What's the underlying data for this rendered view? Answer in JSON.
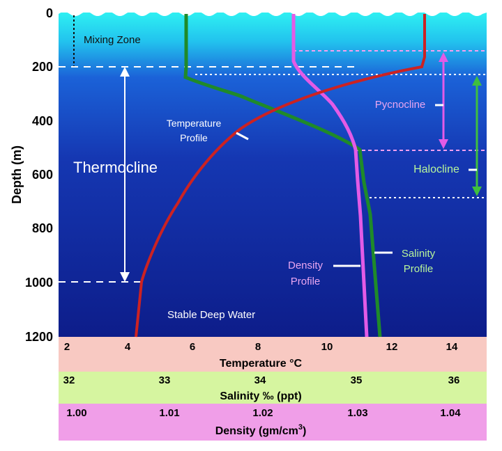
{
  "ylabel": "Depth (m)",
  "depth_ticks": [
    "0",
    "200",
    "400",
    "600",
    "800",
    "1000",
    "1200"
  ],
  "temperature": {
    "title": "Temperature °C",
    "ticks": [
      "2",
      "4",
      "6",
      "8",
      "10",
      "12",
      "14"
    ]
  },
  "salinity": {
    "title": "Salinity ‰ (ppt)",
    "ticks": [
      "32",
      "33",
      "34",
      "35",
      "36"
    ]
  },
  "density": {
    "title_main": "Density (gm/cm",
    "title_sup": "3",
    "title_close": ")",
    "ticks": [
      "1.00",
      "1.01",
      "1.02",
      "1.03",
      "1.04"
    ]
  },
  "labels": {
    "mixing_zone": "Mixing Zone",
    "thermocline": "Thermocline",
    "temperature_profile_1": "Temperature",
    "temperature_profile_2": "Profile",
    "pycnocline": "Pycnocline",
    "halocline": "Halocline",
    "salinity_profile_1": "Salinity",
    "salinity_profile_2": "Profile",
    "density_profile_1": "Density",
    "density_profile_2": "Profile",
    "stable_deep_water": "Stable Deep Water"
  },
  "colors": {
    "temperature": "#cc2222",
    "salinity": "#1f8a2a",
    "density": "#e35be6",
    "pycnocline": "#e35be6",
    "halocline": "#3fbf3f",
    "label_white": "#ffffff",
    "label_violet": "#e9a6f0",
    "label_green": "#b8f59a",
    "temp_band": "#f8c9c2",
    "sal_band": "#d6f5a0",
    "dens_band": "#f09ee8"
  },
  "chart_data": {
    "type": "line",
    "y": {
      "label": "Depth (m)",
      "unit": "m",
      "range": [
        0,
        1200
      ],
      "inverted": true
    },
    "series": [
      {
        "name": "Temperature Profile",
        "axis": "Temperature °C",
        "points": [
          [
            13,
            0
          ],
          [
            13,
            150
          ],
          [
            12.9,
            200
          ],
          [
            10.8,
            250
          ],
          [
            9.0,
            350
          ],
          [
            7.6,
            480
          ],
          [
            6.3,
            600
          ],
          [
            5.4,
            700
          ],
          [
            4.8,
            850
          ],
          [
            4.4,
            1000
          ],
          [
            4.2,
            1200
          ]
        ]
      },
      {
        "name": "Salinity Profile",
        "axis": "Salinity ‰ (ppt)",
        "points": [
          [
            33.0,
            0
          ],
          [
            33.0,
            250
          ],
          [
            33.2,
            280
          ],
          [
            33.9,
            310
          ],
          [
            34.4,
            360
          ],
          [
            34.8,
            450
          ],
          [
            35.0,
            560
          ],
          [
            35.1,
            700
          ],
          [
            35.2,
            850
          ],
          [
            35.3,
            1200
          ]
        ]
      },
      {
        "name": "Density Profile",
        "axis": "Density (gm/cm3)",
        "points": [
          [
            1.0135,
            0
          ],
          [
            1.0135,
            170
          ],
          [
            1.018,
            260
          ],
          [
            1.023,
            330
          ],
          [
            1.027,
            420
          ],
          [
            1.029,
            500
          ],
          [
            1.0295,
            600
          ],
          [
            1.03,
            800
          ],
          [
            1.0303,
            1000
          ],
          [
            1.0305,
            1200
          ]
        ]
      }
    ],
    "zones": [
      {
        "name": "Mixing Zone",
        "depth": [
          0,
          200
        ]
      },
      {
        "name": "Thermocline",
        "depth": [
          200,
          1000
        ]
      },
      {
        "name": "Pycnocline",
        "depth": [
          150,
          530
        ]
      },
      {
        "name": "Halocline",
        "depth": [
          240,
          690
        ]
      },
      {
        "name": "Stable Deep Water",
        "depth": [
          1000,
          1200
        ]
      }
    ]
  }
}
